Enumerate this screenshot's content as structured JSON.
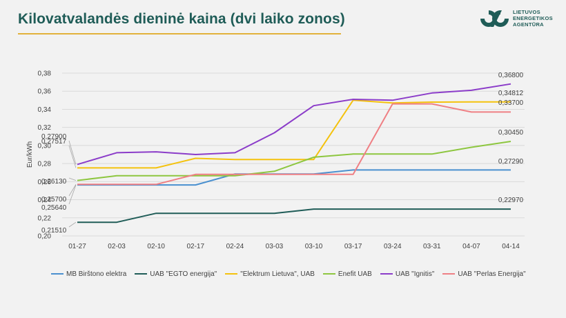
{
  "header": {
    "title": "Kilovatvalandės dieninė kaina (dvi laiko zonos)"
  },
  "logo": {
    "line1": "LIETUVOS",
    "line2": "ENERGETIKOS",
    "line3": "AGENTŪRA",
    "color": "#1f5c57"
  },
  "chart_data": {
    "type": "line",
    "ylabel": "Eur/kWh",
    "xlabel": "",
    "ylim": [
      0.2,
      0.38
    ],
    "yticks": [
      "0,20",
      "0,22",
      "0,24",
      "0,26",
      "0,28",
      "0,30",
      "0,32",
      "0,34",
      "0,36",
      "0,38"
    ],
    "grid": true,
    "legend": "bottom",
    "categories": [
      "01-27",
      "02-03",
      "02-10",
      "02-17",
      "02-24",
      "03-03",
      "03-10",
      "03-17",
      "03-24",
      "03-31",
      "04-07",
      "04-14"
    ],
    "series": [
      {
        "name": "MB Birštono elektra",
        "color": "#4a90cf",
        "values": [
          0.2564,
          0.2564,
          0.2564,
          0.2564,
          0.2685,
          0.2685,
          0.2685,
          0.2729,
          0.2729,
          0.2729,
          0.2729,
          0.2729
        ]
      },
      {
        "name": "UAB \"EGTO energija\"",
        "color": "#1f5c57",
        "values": [
          0.2151,
          0.2151,
          0.225,
          0.225,
          0.225,
          0.225,
          0.2297,
          0.2297,
          0.2297,
          0.2297,
          0.2297,
          0.2297
        ]
      },
      {
        "name": "\"Elektrum Lietuva\", UAB",
        "color": "#f4c20d",
        "values": [
          0.27517,
          0.27517,
          0.27517,
          0.2858,
          0.2845,
          0.2845,
          0.2845,
          0.35,
          0.347,
          0.348,
          0.3481,
          0.34812
        ]
      },
      {
        "name": "Enefit UAB",
        "color": "#8dc63f",
        "values": [
          0.2613,
          0.2665,
          0.2665,
          0.2665,
          0.2665,
          0.2715,
          0.287,
          0.2905,
          0.2905,
          0.2905,
          0.298,
          0.3045
        ]
      },
      {
        "name": "UAB \"Ignitis\"",
        "color": "#8b3cc9",
        "values": [
          0.279,
          0.292,
          0.293,
          0.29,
          0.292,
          0.314,
          0.344,
          0.351,
          0.35,
          0.358,
          0.361,
          0.368
        ]
      },
      {
        "name": "UAB \"Perlas Energija\"",
        "color": "#ef7f84",
        "values": [
          0.257,
          0.257,
          0.257,
          0.268,
          0.268,
          0.268,
          0.268,
          0.268,
          0.346,
          0.346,
          0.337,
          0.337
        ]
      }
    ],
    "annotations": [
      {
        "text": "0,27900",
        "series": 4,
        "index": 0
      },
      {
        "text": "0,27517",
        "series": 2,
        "index": 0
      },
      {
        "text": "0,26130",
        "series": 3,
        "index": 0
      },
      {
        "text": "0,25700",
        "series": 5,
        "index": 0
      },
      {
        "text": "0,25640",
        "series": 0,
        "index": 0
      },
      {
        "text": "0,21510",
        "series": 1,
        "index": 0
      },
      {
        "text": "0,36800",
        "series": 4,
        "index": 11
      },
      {
        "text": "0,34812",
        "series": 2,
        "index": 11
      },
      {
        "text": "0,33700",
        "series": 5,
        "index": 11
      },
      {
        "text": "0,30450",
        "series": 3,
        "index": 11
      },
      {
        "text": "0,27290",
        "series": 0,
        "index": 11
      },
      {
        "text": "0,22970",
        "series": 1,
        "index": 11
      }
    ]
  }
}
